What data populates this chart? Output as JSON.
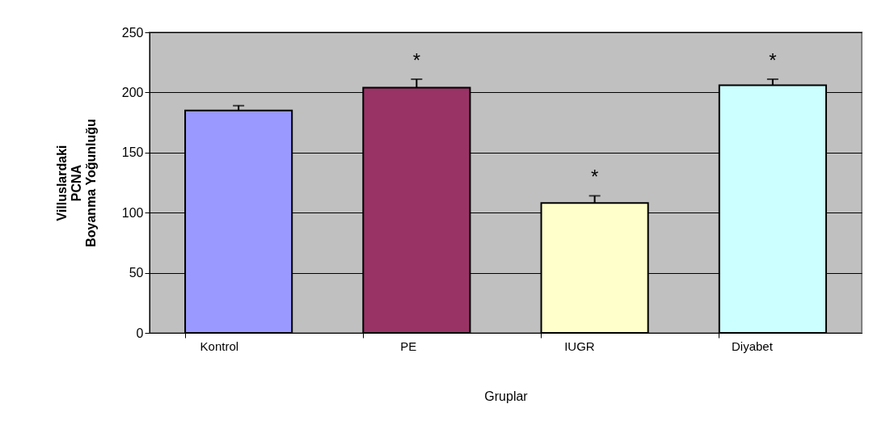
{
  "chart_data": {
    "type": "bar",
    "xlabel": "Gruplar",
    "ylabel": "Villuslardaki\nPCNA\nBoyanma Yoğunluğu",
    "categories": [
      "Kontrol",
      "PE",
      "IUGR",
      "Diyabet"
    ],
    "values": [
      185,
      204,
      108,
      206
    ],
    "errors": [
      4,
      7,
      6,
      5
    ],
    "colors": [
      "#9999ff",
      "#993366",
      "#ffffcc",
      "#ccffff"
    ],
    "ylim": [
      0,
      250
    ],
    "yticks": [
      0,
      50,
      100,
      150,
      200,
      250
    ],
    "grid": "y",
    "annotations": [
      {
        "text": "*",
        "x": "PE",
        "y": 204
      },
      {
        "text": "*",
        "x": "IUGR",
        "y": 108
      },
      {
        "text": "*",
        "x": "Diyabet",
        "y": 206
      }
    ]
  }
}
